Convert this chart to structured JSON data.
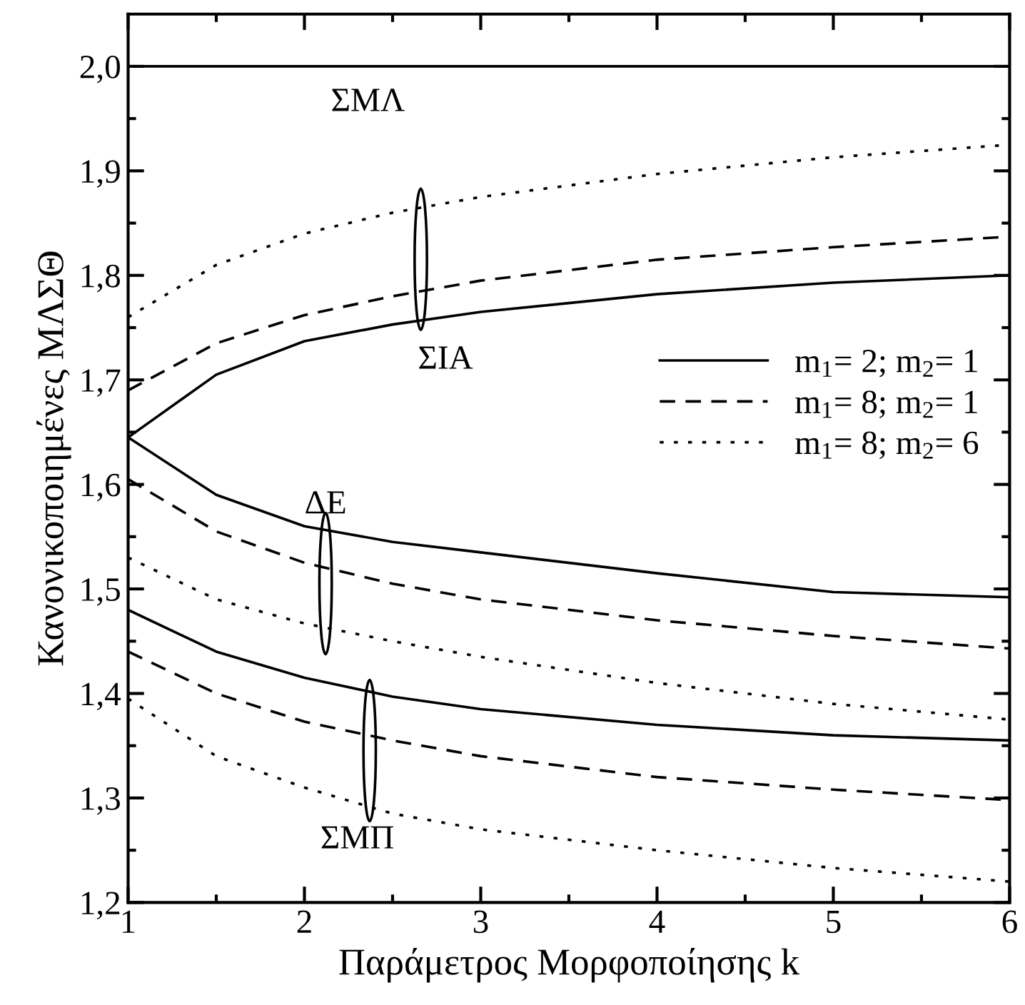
{
  "chart_data": {
    "type": "line",
    "xlabel": "Παράμετρος Μορφοποίησης k",
    "ylabel": "Κανονικοποιημένες ΜΛΣΘ",
    "x": [
      1,
      1.5,
      2,
      2.5,
      3,
      4,
      5,
      6
    ],
    "series": [
      {
        "color": "#000000",
        "line_style": "solid",
        "values": [
          2.0,
          2.0,
          2.0,
          2.0,
          2.0,
          2.0,
          2.0,
          2.0
        ]
      },
      {
        "name": "m$_{1}$= 2; m$_{2}$= 1",
        "color": "#000000",
        "line_style": "solid",
        "values": [
          1.645,
          1.705,
          1.737,
          1.753,
          1.765,
          1.782,
          1.793,
          1.8
        ]
      },
      {
        "name": "m$_{1}$= 8; m$_{2}$= 1",
        "color": "#000000",
        "line_style": "dashed",
        "values": [
          1.69,
          1.735,
          1.762,
          1.78,
          1.795,
          1.815,
          1.827,
          1.837
        ]
      },
      {
        "name": "m$_{1}$= 8; m$_{2}$= 6",
        "color": "#000000",
        "line_style": "dotted",
        "values": [
          1.76,
          1.81,
          1.84,
          1.86,
          1.875,
          1.897,
          1.913,
          1.925
        ]
      },
      {
        "color": "#000000",
        "line_style": "solid",
        "values": [
          1.645,
          1.59,
          1.56,
          1.545,
          1.535,
          1.515,
          1.497,
          1.492
        ]
      },
      {
        "color": "#000000",
        "line_style": "dashed",
        "values": [
          1.605,
          1.555,
          1.525,
          1.505,
          1.49,
          1.47,
          1.455,
          1.443
        ]
      },
      {
        "color": "#000000",
        "line_style": "dotted",
        "values": [
          1.53,
          1.49,
          1.467,
          1.45,
          1.435,
          1.41,
          1.39,
          1.375
        ]
      },
      {
        "color": "#000000",
        "line_style": "solid",
        "values": [
          1.48,
          1.44,
          1.415,
          1.397,
          1.385,
          1.37,
          1.36,
          1.355
        ]
      },
      {
        "color": "#000000",
        "line_style": "dashed",
        "values": [
          1.44,
          1.4,
          1.373,
          1.355,
          1.34,
          1.32,
          1.308,
          1.298
        ]
      },
      {
        "color": "#000000",
        "line_style": "dotted",
        "values": [
          1.395,
          1.34,
          1.31,
          1.285,
          1.27,
          1.25,
          1.233,
          1.22
        ]
      }
    ],
    "annotations": [
      "ΣΜΛ",
      "ΣΙΑ",
      "ΔΕ",
      "ΣΜΠ"
    ],
    "xlim": [
      1,
      6
    ],
    "ylim": [
      1.2,
      2.05
    ],
    "xticks": [
      1,
      2,
      3,
      4,
      5,
      6
    ],
    "yticks": [
      {
        "value": 1.2,
        "label": "1,2"
      },
      {
        "value": 1.3,
        "label": "1,3"
      },
      {
        "value": 1.4,
        "label": "1,4"
      },
      {
        "value": 1.5,
        "label": "1,5"
      },
      {
        "value": 1.6,
        "label": "1,6"
      },
      {
        "value": 1.7,
        "label": "1,7"
      },
      {
        "value": 1.8,
        "label": "1,8"
      },
      {
        "value": 1.9,
        "label": "1,9"
      },
      {
        "value": 2.0,
        "label": "2,0"
      }
    ],
    "legend": "right",
    "grid": false,
    "marker": "none"
  }
}
